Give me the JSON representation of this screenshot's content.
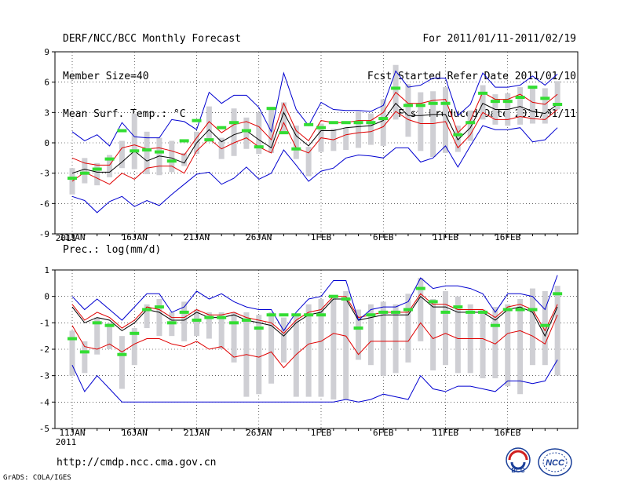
{
  "header": {
    "title": "DERF/NCC/BCC Monthly Forecast",
    "member_size": "Member Size=40",
    "variable": "Mean Surf. Temp.: °C",
    "period": "For 2011/01/11-2011/02/19",
    "start_date": "Fcst Started Refer Date 2011/01/10",
    "produced_date": "Fcst Produced Date 2011/01/11"
  },
  "footer": {
    "url": "http://cmdp.ncc.cma.gov.cn",
    "credit": "GrADS: COLA/IGES",
    "logo1_text": "BCC",
    "logo2_text": "NCC"
  },
  "colors": {
    "ensemble_mean": "#000000",
    "spread": "#e00000",
    "envelope": "#0000d0",
    "box": "#cfcfd4",
    "median": "#33dd33"
  },
  "chart_data": [
    {
      "type": "line",
      "title": "Mean Surf. Temp.: °C",
      "x_tick_labels": [
        "11JAN",
        "16JAN",
        "21JAN",
        "26JAN",
        "1FEB",
        "6FEB",
        "11FEB",
        "16FEB"
      ],
      "x_year_label": "2011",
      "ylim": [
        -9,
        9
      ],
      "y_ticks": [
        -9,
        -6,
        -3,
        0,
        3,
        6,
        9
      ],
      "grid": true,
      "days": 40,
      "series": [
        {
          "name": "mean",
          "values": [
            -3.0,
            -2.6,
            -2.9,
            -2.9,
            -1.9,
            -0.8,
            -1.8,
            -1.3,
            -1.5,
            -2.0,
            0.0,
            1.3,
            0.1,
            0.8,
            1.2,
            0.3,
            -0.5,
            3.0,
            0.7,
            -0.3,
            1.2,
            1.2,
            1.5,
            1.6,
            1.7,
            2.2,
            3.9,
            2.7,
            2.7,
            2.8,
            2.8,
            0.3,
            1.5,
            3.9,
            3.3,
            3.3,
            3.6,
            3.1,
            2.9,
            3.8
          ]
        },
        {
          "name": "upper",
          "values": [
            -1.5,
            -2.0,
            -2.2,
            -2.2,
            -0.5,
            -0.2,
            -0.6,
            -0.5,
            -0.8,
            -1.2,
            0.5,
            2.1,
            1.0,
            1.8,
            2.1,
            1.6,
            0.3,
            3.9,
            1.2,
            0.2,
            2.2,
            2.0,
            2.0,
            2.2,
            2.2,
            3.0,
            5.0,
            3.9,
            3.9,
            4.2,
            4.3,
            1.0,
            2.2,
            5.0,
            4.3,
            4.3,
            4.8,
            4.0,
            3.8,
            4.8
          ]
        },
        {
          "name": "lower",
          "values": [
            -3.8,
            -2.9,
            -3.5,
            -4.1,
            -3.0,
            -3.6,
            -2.5,
            -2.3,
            -2.3,
            -3.0,
            -0.8,
            0.4,
            -0.6,
            0.0,
            0.5,
            -0.4,
            -1.0,
            2.0,
            -0.5,
            -1.0,
            0.5,
            0.3,
            0.8,
            1.0,
            1.1,
            1.6,
            3.1,
            2.3,
            1.9,
            1.9,
            2.1,
            -0.5,
            0.8,
            3.0,
            2.3,
            2.3,
            2.6,
            2.4,
            2.3,
            3.3
          ]
        },
        {
          "name": "max",
          "values": [
            1.1,
            0.2,
            0.8,
            -0.3,
            2.0,
            0.6,
            0.5,
            0.5,
            2.3,
            2.1,
            1.3,
            5.0,
            3.9,
            4.7,
            4.7,
            3.5,
            1.1,
            6.9,
            3.3,
            1.7,
            4.0,
            3.3,
            3.2,
            3.2,
            3.1,
            3.7,
            7.1,
            5.5,
            5.7,
            6.4,
            6.4,
            2.7,
            3.8,
            6.9,
            5.5,
            5.5,
            5.7,
            6.6,
            5.7,
            6.8
          ]
        },
        {
          "name": "min",
          "values": [
            -5.3,
            -5.7,
            -6.9,
            -5.8,
            -5.3,
            -6.3,
            -5.7,
            -6.2,
            -5.1,
            -4.1,
            -3.1,
            -2.9,
            -4.1,
            -3.5,
            -2.4,
            -3.6,
            -3.0,
            -0.7,
            -2.2,
            -3.8,
            -2.8,
            -2.5,
            -1.5,
            -1.2,
            -1.3,
            -1.5,
            -0.5,
            -0.5,
            -1.9,
            -1.5,
            -0.3,
            -2.4,
            -0.3,
            1.7,
            1.3,
            1.3,
            1.5,
            0.1,
            0.3,
            1.5
          ]
        }
      ],
      "boxes": [
        [
          -5.1,
          -2.5
        ],
        [
          -4.0,
          -1.5
        ],
        [
          -4.2,
          -2.0
        ],
        [
          -3.4,
          -1.2
        ],
        [
          -2.5,
          0.2
        ],
        [
          -2.6,
          2.9
        ],
        [
          -3.1,
          1.1
        ],
        [
          -3.2,
          0.5
        ],
        [
          -2.9,
          0.2
        ],
        [
          -2.3,
          -1.0
        ],
        [
          -1.1,
          1.1
        ],
        [
          0.1,
          3.6
        ],
        [
          -1.6,
          0.5
        ],
        [
          -1.3,
          3.4
        ],
        [
          -0.6,
          2.5
        ],
        [
          -1.1,
          3.0
        ],
        [
          -1.0,
          3.4
        ],
        [
          1.0,
          4.0
        ],
        [
          -1.6,
          1.7
        ],
        [
          -3.3,
          -0.4
        ],
        [
          -0.9,
          1.9
        ],
        [
          -0.8,
          1.4
        ],
        [
          -0.7,
          1.5
        ],
        [
          -0.5,
          3.1
        ],
        [
          -0.2,
          2.9
        ],
        [
          -0.3,
          4.3
        ],
        [
          2.3,
          7.7
        ],
        [
          0.6,
          5.8
        ],
        [
          -0.8,
          5.0
        ],
        [
          -1.4,
          5.1
        ],
        [
          -1.0,
          5.5
        ],
        [
          -0.9,
          1.7
        ],
        [
          0.2,
          3.2
        ],
        [
          2.3,
          5.7
        ],
        [
          1.8,
          4.8
        ],
        [
          1.7,
          4.9
        ],
        [
          1.8,
          5.5
        ],
        [
          1.9,
          5.4
        ],
        [
          1.9,
          5.4
        ],
        [
          3.3,
          6.1
        ]
      ],
      "medians": [
        -3.5,
        -3.0,
        -2.6,
        -1.6,
        1.2,
        -0.8,
        -0.7,
        -0.9,
        -1.8,
        0.2,
        2.2,
        0.3,
        1.5,
        2.0,
        1.2,
        -0.4,
        3.4,
        1.0,
        -0.6,
        1.8,
        1.5,
        2.0,
        2.0,
        2.0,
        2.0,
        2.4,
        5.4,
        3.7,
        3.7,
        3.9,
        3.9,
        0.8,
        2.0,
        4.9,
        4.1,
        4.1,
        4.5,
        5.5,
        4.4,
        3.8
      ]
    },
    {
      "type": "line",
      "title": "Prec.: log(mm/d)",
      "x_tick_labels": [
        "11JAN",
        "16JAN",
        "21JAN",
        "26JAN",
        "1FEB",
        "6FEB",
        "11FEB",
        "16FEB"
      ],
      "x_year_label": "2011",
      "ylim": [
        -5,
        1
      ],
      "y_ticks": [
        -5,
        -4,
        -3,
        -2,
        -1,
        0,
        1
      ],
      "grid": true,
      "days": 40,
      "series": [
        {
          "name": "mean",
          "values": [
            -0.4,
            -1.0,
            -0.8,
            -0.9,
            -1.3,
            -1.0,
            -0.5,
            -0.6,
            -0.9,
            -0.9,
            -0.6,
            -0.8,
            -0.8,
            -0.7,
            -0.9,
            -1.0,
            -1.1,
            -1.5,
            -1.0,
            -0.7,
            -0.6,
            -0.1,
            -0.1,
            -0.9,
            -0.8,
            -0.7,
            -0.7,
            -0.7,
            0.0,
            -0.4,
            -0.4,
            -0.6,
            -0.6,
            -0.6,
            -0.9,
            -0.5,
            -0.4,
            -0.6,
            -1.5,
            -0.4
          ]
        },
        {
          "name": "upper",
          "values": [
            -0.3,
            -0.9,
            -0.6,
            -0.8,
            -1.2,
            -0.9,
            -0.4,
            -0.5,
            -0.8,
            -0.8,
            -0.5,
            -0.7,
            -0.7,
            -0.6,
            -0.8,
            -0.9,
            -1.0,
            -1.4,
            -0.9,
            -0.6,
            -0.5,
            0.0,
            0.0,
            -0.8,
            -0.7,
            -0.6,
            -0.6,
            -0.6,
            0.1,
            -0.3,
            -0.3,
            -0.5,
            -0.5,
            -0.5,
            -0.8,
            -0.4,
            -0.3,
            -0.5,
            -1.3,
            -0.3
          ]
        },
        {
          "name": "lower",
          "values": [
            -1.1,
            -1.9,
            -2.0,
            -1.8,
            -2.1,
            -1.8,
            -1.6,
            -1.6,
            -1.8,
            -1.9,
            -1.7,
            -2.0,
            -1.9,
            -2.3,
            -2.2,
            -2.3,
            -2.1,
            -2.7,
            -2.2,
            -1.8,
            -1.7,
            -1.4,
            -1.5,
            -2.2,
            -1.7,
            -1.7,
            -1.7,
            -1.7,
            -1.0,
            -1.6,
            -1.4,
            -1.6,
            -1.6,
            -1.6,
            -1.8,
            -1.4,
            -1.3,
            -1.5,
            -1.8,
            -0.7
          ]
        },
        {
          "name": "max",
          "values": [
            0.0,
            -0.5,
            -0.1,
            -0.5,
            -0.9,
            -0.4,
            0.1,
            0.1,
            -0.6,
            -0.4,
            0.2,
            -0.1,
            0.1,
            -0.2,
            -0.4,
            -0.5,
            -0.5,
            -1.3,
            -0.6,
            -0.1,
            0.0,
            0.6,
            0.6,
            -0.9,
            -0.5,
            -0.4,
            -0.4,
            -0.2,
            0.7,
            0.3,
            0.4,
            0.4,
            0.3,
            0.1,
            -0.6,
            0.1,
            0.1,
            0.0,
            -0.5,
            0.8
          ]
        },
        {
          "name": "min",
          "values": [
            -2.6,
            -3.6,
            -3.0,
            -3.5,
            -4.0,
            -4.0,
            -4.0,
            -4.0,
            -4.0,
            -4.0,
            -4.0,
            -4.0,
            -4.0,
            -4.0,
            -4.0,
            -4.0,
            -4.0,
            -4.0,
            -4.0,
            -4.0,
            -4.0,
            -4.0,
            -3.9,
            -4.0,
            -3.9,
            -3.7,
            -3.8,
            -3.9,
            -3.0,
            -3.5,
            -3.6,
            -3.4,
            -3.4,
            -3.5,
            -3.6,
            -3.2,
            -3.2,
            -3.3,
            -3.2,
            -2.4
          ]
        },
        {
          "name": "median",
          "values": [
            -1.6,
            -2.1,
            -1.0,
            -1.1,
            -2.2,
            -1.4,
            -0.5,
            -0.4,
            -1.0,
            -0.6,
            -0.9,
            -0.8,
            -0.8,
            -1.0,
            -0.9,
            -1.2,
            -0.7,
            -0.7,
            -0.7,
            -0.7,
            -0.7,
            0.0,
            -0.1,
            -1.2,
            -0.7,
            -0.6,
            -0.6,
            -0.5,
            0.3,
            -0.2,
            -0.6,
            -0.4,
            -0.6,
            -0.6,
            -1.1,
            -0.5,
            -0.5,
            -0.5,
            -1.1,
            0.1
          ]
        }
      ],
      "boxes": [
        [
          -3.0,
          -1.3
        ],
        [
          -2.9,
          -1.7
        ],
        [
          -2.2,
          -0.8
        ],
        [
          -2.0,
          -1.0
        ],
        [
          -3.5,
          -1.5
        ],
        [
          -2.6,
          -1.2
        ],
        [
          -1.2,
          -0.3
        ],
        [
          -1.5,
          -0.1
        ],
        [
          -1.5,
          -0.6
        ],
        [
          -1.7,
          -0.2
        ],
        [
          -1.5,
          -0.5
        ],
        [
          -1.6,
          -0.6
        ],
        [
          -2.0,
          -0.6
        ],
        [
          -2.5,
          -0.6
        ],
        [
          -3.8,
          -0.6
        ],
        [
          -3.7,
          -0.7
        ],
        [
          -3.3,
          -0.6
        ],
        [
          -2.5,
          -0.8
        ],
        [
          -3.8,
          -0.7
        ],
        [
          -3.8,
          -0.3
        ],
        [
          -3.8,
          -0.1
        ],
        [
          -3.9,
          0.0
        ],
        [
          -3.9,
          0.2
        ],
        [
          -2.4,
          -0.5
        ],
        [
          -2.6,
          -0.3
        ],
        [
          -3.0,
          -0.2
        ],
        [
          -2.9,
          -0.3
        ],
        [
          -2.5,
          0.1
        ],
        [
          -1.7,
          0.7
        ],
        [
          -2.8,
          -0.1
        ],
        [
          -2.6,
          0.2
        ],
        [
          -2.9,
          0.0
        ],
        [
          -2.9,
          -0.3
        ],
        [
          -3.1,
          -0.5
        ],
        [
          -3.1,
          -0.4
        ],
        [
          -3.4,
          -0.3
        ],
        [
          -3.7,
          -0.1
        ],
        [
          -2.6,
          0.3
        ],
        [
          -2.6,
          0.2
        ],
        [
          -3.0,
          0.4
        ]
      ]
    }
  ]
}
